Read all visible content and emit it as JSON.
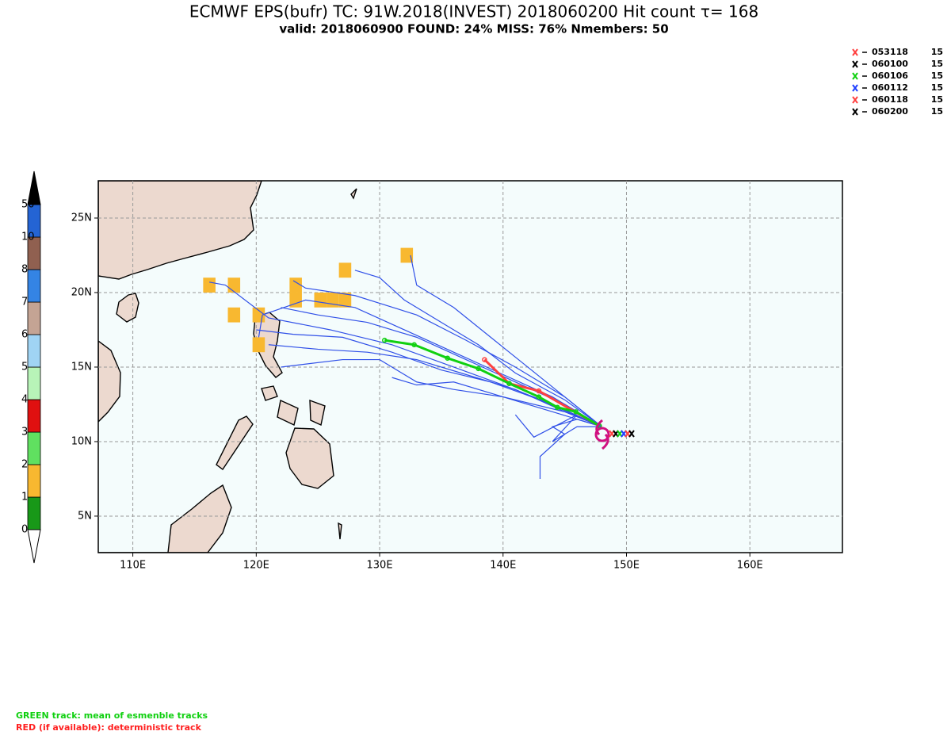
{
  "chart_data": {
    "type": "map",
    "title": "ECMWF EPS(bufr) TC: 91W.2018(INVEST) 2018060200 Hit count  τ= 168",
    "subtitle": "valid: 2018060900   FOUND: 24%   MISS: 76%     Nmembers: 50",
    "xlim": [
      107.2,
      167.5
    ],
    "ylim": [
      2.55,
      27.5
    ],
    "xticks": [
      {
        "value": 110,
        "label": "110E"
      },
      {
        "value": 120,
        "label": "120E"
      },
      {
        "value": 130,
        "label": "130E"
      },
      {
        "value": 140,
        "label": "140E"
      },
      {
        "value": 150,
        "label": "150E"
      },
      {
        "value": 160,
        "label": "160E"
      }
    ],
    "yticks": [
      {
        "value": 5,
        "label": "5N"
      },
      {
        "value": 10,
        "label": "10N"
      },
      {
        "value": 15,
        "label": "15N"
      },
      {
        "value": 20,
        "label": "20N"
      },
      {
        "value": 25,
        "label": "25N"
      }
    ],
    "grid": true,
    "colorbar": {
      "levels": [
        0,
        1,
        2,
        3,
        4,
        5,
        6,
        7,
        8,
        10,
        50
      ],
      "colors": [
        "#189818",
        "#f8b830",
        "#60e060",
        "#e01010",
        "#b8f4b8",
        "#a0d4f4",
        "#c4a494",
        "#3484e4",
        "#906050",
        "#2464d4"
      ],
      "over_color": "#000000",
      "under_color": "#ffffff"
    },
    "legend": [
      {
        "name": "053118",
        "count": 15,
        "color": "#ff4040"
      },
      {
        "name": "060100",
        "count": 15,
        "color": "#000000"
      },
      {
        "name": "060106",
        "count": 15,
        "color": "#10d010"
      },
      {
        "name": "060112",
        "count": 15,
        "color": "#2040ff"
      },
      {
        "name": "060118",
        "count": 15,
        "color": "#ff4040"
      },
      {
        "name": "060200",
        "count": 15,
        "color": "#000000"
      }
    ],
    "hit_cells": {
      "lon": [
        116.2,
        118.2,
        118.2,
        120.2,
        120.2,
        123.2,
        123.2,
        125.2,
        126.2,
        127.2,
        127.2,
        132.2
      ],
      "lat": [
        20.5,
        20.5,
        18.5,
        18.5,
        16.5,
        20.5,
        19.5,
        19.5,
        19.5,
        21.5,
        19.5,
        22.5
      ],
      "count": [
        1,
        1,
        1,
        1,
        1,
        1,
        1,
        1,
        1,
        1,
        1,
        1
      ]
    },
    "track_color": "#3050e8",
    "tracks": [
      {
        "lon": [
          148,
          145,
          141,
          137,
          133,
          129,
          125,
          122
        ],
        "lat": [
          11,
          12.5,
          14,
          15.5,
          17,
          18,
          18.5,
          19
        ]
      },
      {
        "lon": [
          148,
          144,
          140,
          136,
          132,
          128,
          124,
          120.5,
          120.2
        ],
        "lat": [
          11,
          13,
          14.5,
          16,
          17.5,
          19,
          19.5,
          18.5,
          17
        ]
      },
      {
        "lon": [
          148,
          145,
          141,
          137,
          133,
          129,
          125,
          121
        ],
        "lat": [
          11,
          12,
          13.5,
          14.5,
          15.5,
          16,
          16.2,
          16.5
        ]
      },
      {
        "lon": [
          148,
          144,
          140,
          136,
          133,
          130,
          127,
          122
        ],
        "lat": [
          11,
          12,
          13,
          13.5,
          14,
          15.5,
          15.5,
          15
        ]
      },
      {
        "lon": [
          148,
          145,
          141,
          138,
          135,
          132,
          130,
          128
        ],
        "lat": [
          11,
          12.8,
          14.6,
          16.5,
          18,
          19.5,
          21,
          21.5
        ]
      },
      {
        "lon": [
          148,
          145,
          142,
          139,
          136,
          133,
          132.5
        ],
        "lat": [
          11,
          13,
          15,
          17,
          19,
          20.5,
          22.5
        ]
      },
      {
        "lon": [
          148,
          146,
          144,
          145,
          143,
          143
        ],
        "lat": [
          11,
          11.5,
          11,
          10.5,
          9,
          7.5
        ]
      },
      {
        "lon": [
          148,
          145,
          140,
          136,
          133,
          131
        ],
        "lat": [
          11,
          12,
          13,
          14,
          13.8,
          14.3
        ]
      },
      {
        "lon": [
          148,
          144,
          140,
          136,
          131,
          126,
          121,
          117.5,
          116.2
        ],
        "lat": [
          11,
          12.5,
          13.8,
          15,
          16.5,
          17.5,
          18.3,
          20.5,
          20.7
        ]
      },
      {
        "lon": [
          148,
          145,
          141,
          137,
          133,
          128,
          124,
          123
        ],
        "lat": [
          11,
          13,
          15,
          16.8,
          18.5,
          19.8,
          20.3,
          20.8
        ]
      },
      {
        "lon": [
          148,
          146,
          144,
          146,
          142.5,
          141
        ],
        "lat": [
          11,
          11,
          10,
          11.8,
          10.3,
          11.8
        ]
      },
      {
        "lon": [
          148,
          143,
          139,
          135,
          131,
          127,
          123,
          120
        ],
        "lat": [
          11,
          12.8,
          14,
          14.8,
          16,
          17,
          17.2,
          17.5
        ]
      }
    ],
    "mean_track": {
      "color": "#10d010",
      "lon": [
        147.8,
        145.9,
        144.4,
        142.9,
        140.5,
        138.0,
        135.5,
        132.8,
        130.4
      ],
      "lat": [
        11.06,
        12.0,
        12.3,
        13.0,
        13.9,
        14.9,
        15.6,
        16.5,
        16.8
      ]
    },
    "deterministic_track": {
      "color": "#ff4040",
      "lon": [
        147.8,
        142.9,
        140.5,
        138.5
      ],
      "lat": [
        11.06,
        13.4,
        13.9,
        15.5
      ]
    },
    "footnotes": [
      {
        "text": "GREEN track: mean of esmenble tracks",
        "color": "#10d010"
      },
      {
        "text": "RED (if available): deterministic track",
        "color": "#ff2020"
      }
    ]
  }
}
